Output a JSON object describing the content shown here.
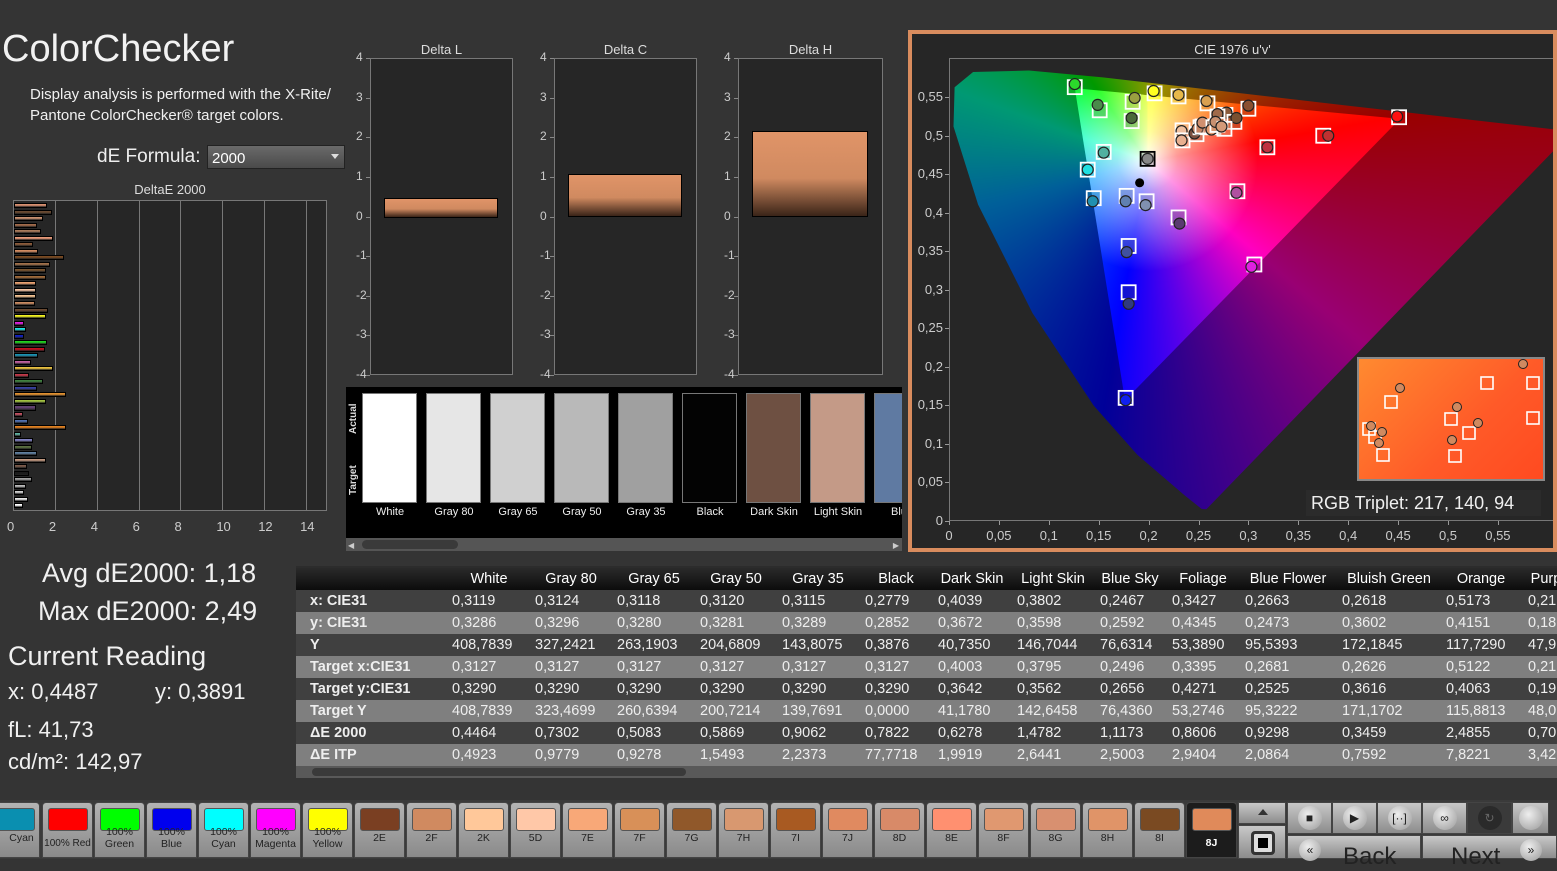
{
  "header": {
    "title": "ColorChecker",
    "description": "Display analysis is performed with the X-Rite/ Pantone ColorChecker® target colors.",
    "formula_label": "dE Formula:",
    "formula_value": "2000"
  },
  "deltae_chart": {
    "title": "DeltaE 2000",
    "type": "bar",
    "orientation": "horizontal",
    "xlim": [
      0,
      15
    ],
    "xticks": [
      "0",
      "2",
      "4",
      "6",
      "8",
      "10",
      "12",
      "14"
    ],
    "values": [
      1.6,
      1.82,
      1.37,
      1.08,
      1.27,
      1.85,
      0.93,
      1.17,
      2.39,
      1.71,
      1.51,
      1.51,
      1.07,
      1.07,
      1.06,
      1.02,
      1.61,
      1.51,
      0.49,
      0.59,
      0.49,
      1.56,
      1.46,
      1.17,
      0.83,
      1.85,
      0.73,
      1.37,
      1.12,
      2.49,
      1.51,
      1.07,
      0.44,
      0.68,
      2.49,
      0.33,
      0.93,
      0.88,
      1.12,
      1.51,
      0.63,
      0.73,
      0.88,
      0.59,
      0.49,
      0.68,
      0.45
    ],
    "colors": [
      "#d89070",
      "#6a4a32",
      "#c89070",
      "#a06a4a",
      "#a87a5a",
      "#e89a7a",
      "#8a5a3a",
      "#d08a60",
      "#7a4a22",
      "#a0704a",
      "#7a5530",
      "#a06a3a",
      "#e8a070",
      "#f0c0a0",
      "#f0c090",
      "#c88a60",
      "#6a4a32",
      "#f0f020",
      "#e020e0",
      "#20e0e0",
      "#1020c0",
      "#20d020",
      "#c01020",
      "#1a90b0",
      "#c060a0",
      "#e8c040",
      "#c03848",
      "#408040",
      "#3840a0",
      "#e09030",
      "#a0c040",
      "#604070",
      "#c05060",
      "#5070b0",
      "#e08020",
      "#60b0a0",
      "#8080c0",
      "#5a7040",
      "#6080a0",
      "#c09880",
      "#7a5a4a",
      "#1a1a1a",
      "#a0a0a0",
      "#b8b8b8",
      "#d0d0d0",
      "#e6e6e6",
      "#ffffff"
    ]
  },
  "delta_charts": [
    {
      "title": "Delta L",
      "value": 0.5,
      "ylim": [
        -4,
        4
      ],
      "yticks": [
        "4",
        "3",
        "2",
        "1",
        "0",
        "-1",
        "-2",
        "-3",
        "-4"
      ]
    },
    {
      "title": "Delta C",
      "value": 1.1,
      "ylim": [
        -4,
        4
      ],
      "yticks": [
        "4",
        "3",
        "2",
        "1",
        "0",
        "-1",
        "-2",
        "-3",
        "-4"
      ]
    },
    {
      "title": "Delta H",
      "value": 2.18,
      "ylim": [
        -4,
        4
      ],
      "yticks": [
        "4",
        "3",
        "2",
        "1",
        "0",
        "-1",
        "-2",
        "-3",
        "-4"
      ]
    }
  ],
  "swatches": {
    "actual_label": "Actual",
    "target_label": "Target",
    "items": [
      {
        "label": "White",
        "color": "#ffffff"
      },
      {
        "label": "Gray 80",
        "color": "#e6e6e6"
      },
      {
        "label": "Gray 65",
        "color": "#d0d0d0"
      },
      {
        "label": "Gray 50",
        "color": "#b9b9b9"
      },
      {
        "label": "Gray 35",
        "color": "#a0a0a0"
      },
      {
        "label": "Black",
        "color": "#030303"
      },
      {
        "label": "Dark Skin",
        "color": "#6e5042"
      },
      {
        "label": "Light Skin",
        "color": "#c49a87"
      },
      {
        "label": "Blue",
        "color": "#5f7aa2"
      }
    ]
  },
  "stats": {
    "avg": "Avg dE2000: 1,18",
    "max": "Max dE2000: 2,49",
    "current_title": "Current Reading",
    "x": "x: 0,4487",
    "y": "y: 0,3891",
    "fl": "fL: 41,73",
    "cdm2": "cd/m²: 142,97"
  },
  "table": {
    "columns": [
      "White",
      "Gray 80",
      "Gray 65",
      "Gray 50",
      "Gray 35",
      "Black",
      "Dark Skin",
      "Light Skin",
      "Blue Sky",
      "Foliage",
      "Blue Flower",
      "Bluish Green",
      "Orange",
      "Purp"
    ],
    "rows": [
      {
        "label": "x: CIE31",
        "values": [
          "0,3119",
          "0,3124",
          "0,3118",
          "0,3120",
          "0,3115",
          "0,2779",
          "0,4039",
          "0,3802",
          "0,2467",
          "0,3427",
          "0,2663",
          "0,2618",
          "0,5173",
          "0,21"
        ]
      },
      {
        "label": "y: CIE31",
        "values": [
          "0,3286",
          "0,3296",
          "0,3280",
          "0,3281",
          "0,3289",
          "0,2852",
          "0,3672",
          "0,3598",
          "0,2592",
          "0,4345",
          "0,2473",
          "0,3602",
          "0,4151",
          "0,18"
        ]
      },
      {
        "label": "Y",
        "values": [
          "408,7839",
          "327,2421",
          "263,1903",
          "204,6809",
          "143,8075",
          "0,3876",
          "40,7350",
          "146,7044",
          "76,6314",
          "53,3890",
          "95,5393",
          "172,1845",
          "117,7290",
          "47,9"
        ]
      },
      {
        "label": "Target x:CIE31",
        "values": [
          "0,3127",
          "0,3127",
          "0,3127",
          "0,3127",
          "0,3127",
          "0,3127",
          "0,4003",
          "0,3795",
          "0,2496",
          "0,3395",
          "0,2681",
          "0,2626",
          "0,5122",
          "0,21"
        ]
      },
      {
        "label": "Target y:CIE31",
        "values": [
          "0,3290",
          "0,3290",
          "0,3290",
          "0,3290",
          "0,3290",
          "0,3290",
          "0,3642",
          "0,3562",
          "0,2656",
          "0,4271",
          "0,2525",
          "0,3616",
          "0,4063",
          "0,19"
        ]
      },
      {
        "label": "Target Y",
        "values": [
          "408,7839",
          "323,4699",
          "260,6394",
          "200,7214",
          "139,7691",
          "0,0000",
          "41,1780",
          "142,6458",
          "76,4360",
          "53,2746",
          "95,3222",
          "171,1702",
          "115,8813",
          "48,0"
        ]
      },
      {
        "label": "ΔE 2000",
        "values": [
          "0,4464",
          "0,7302",
          "0,5083",
          "0,5869",
          "0,9062",
          "0,7822",
          "0,6278",
          "1,4782",
          "1,1173",
          "0,8606",
          "0,9298",
          "0,3459",
          "2,4855",
          "0,70"
        ]
      },
      {
        "label": "ΔE ITP",
        "values": [
          "0,4923",
          "0,9779",
          "0,9278",
          "1,5493",
          "2,2373",
          "77,7718",
          "1,9919",
          "2,6441",
          "2,5003",
          "2,9404",
          "2,0864",
          "0,7592",
          "7,8221",
          "3,42"
        ]
      }
    ]
  },
  "chart_data": {
    "type": "scatter",
    "title": "CIE 1976 u'v'",
    "xlim": [
      0,
      0.6
    ],
    "ylim": [
      0,
      0.59
    ],
    "xticks": [
      "0",
      "0,05",
      "0,1",
      "0,15",
      "0,2",
      "0,25",
      "0,3",
      "0,35",
      "0,4",
      "0,45",
      "0,5",
      "0,55"
    ],
    "yticks": [
      "0",
      "0,05",
      "0,1",
      "0,15",
      "0,2",
      "0,25",
      "0,3",
      "0,35",
      "0,4",
      "0,45",
      "0,5",
      "0,55"
    ],
    "current_reading": [
      0.19,
      0.44
    ],
    "points": [
      {
        "measured": [
          0.125,
          0.568
        ],
        "target": [
          0.125,
          0.564
        ],
        "color": "#2bd92b"
      },
      {
        "measured": [
          0.204,
          0.559
        ],
        "target": [
          0.205,
          0.556
        ],
        "color": "#ffff20"
      },
      {
        "measured": [
          0.229,
          0.554
        ],
        "target": [
          0.229,
          0.552
        ],
        "color": "#e6b84a"
      },
      {
        "measured": [
          0.257,
          0.546
        ],
        "target": [
          0.258,
          0.543
        ],
        "color": "#d9a050"
      },
      {
        "measured": [
          0.185,
          0.55
        ],
        "target": [
          0.183,
          0.545
        ],
        "color": "#9aa040"
      },
      {
        "measured": [
          0.148,
          0.541
        ],
        "target": [
          0.15,
          0.534
        ],
        "color": "#4a8a4a"
      },
      {
        "measured": [
          0.182,
          0.524
        ],
        "target": [
          0.182,
          0.52
        ],
        "color": "#4a6a3a"
      },
      {
        "measured": [
          0.154,
          0.479
        ],
        "target": [
          0.154,
          0.48
        ],
        "color": "#50b0a0"
      },
      {
        "measured": [
          0.138,
          0.457
        ],
        "target": [
          0.138,
          0.457
        ],
        "color": "#20e0e0"
      },
      {
        "measured": [
          0.143,
          0.416
        ],
        "target": [
          0.144,
          0.42
        ],
        "color": "#2090b0"
      },
      {
        "measured": [
          0.176,
          0.416
        ],
        "target": [
          0.177,
          0.423
        ],
        "color": "#6080b0"
      },
      {
        "measured": [
          0.196,
          0.411
        ],
        "target": [
          0.197,
          0.416
        ],
        "color": "#8090b0"
      },
      {
        "measured": [
          0.198,
          0.471
        ],
        "target": [
          0.198,
          0.471
        ],
        "color": "#888888"
      },
      {
        "measured": [
          0.23,
          0.387
        ],
        "target": [
          0.229,
          0.395
        ],
        "color": "#5a3a70"
      },
      {
        "measured": [
          0.287,
          0.427
        ],
        "target": [
          0.288,
          0.429
        ],
        "color": "#b050a0"
      },
      {
        "measured": [
          0.302,
          0.331
        ],
        "target": [
          0.305,
          0.334
        ],
        "color": "#e020e0"
      },
      {
        "measured": [
          0.177,
          0.35
        ],
        "target": [
          0.179,
          0.358
        ],
        "color": "#4050a0"
      },
      {
        "measured": [
          0.179,
          0.283
        ],
        "target": [
          0.179,
          0.298
        ],
        "color": "#303a80"
      },
      {
        "measured": [
          0.176,
          0.158
        ],
        "target": [
          0.176,
          0.161
        ],
        "color": "#1020f0"
      },
      {
        "measured": [
          0.318,
          0.486
        ],
        "target": [
          0.318,
          0.486
        ],
        "color": "#c03040"
      },
      {
        "measured": [
          0.379,
          0.501
        ],
        "target": [
          0.374,
          0.501
        ],
        "color": "#c03030"
      },
      {
        "measured": [
          0.448,
          0.526
        ],
        "target": [
          0.45,
          0.525
        ],
        "color": "#ff1010"
      },
      {
        "measured": [
          0.299,
          0.54
        ],
        "target": [
          0.299,
          0.536
        ],
        "color": "#8a5030"
      },
      {
        "measured": [
          0.277,
          0.531
        ],
        "target": [
          0.276,
          0.528
        ],
        "color": "#8a5a3a"
      },
      {
        "measured": [
          0.287,
          0.524
        ],
        "target": [
          0.285,
          0.519
        ],
        "color": "#7a5030"
      },
      {
        "measured": [
          0.268,
          0.529
        ],
        "target": [
          0.268,
          0.526
        ],
        "color": "#a06a4a"
      },
      {
        "measured": [
          0.232,
          0.507
        ],
        "target": [
          0.233,
          0.508
        ],
        "color": "#f0c0a0"
      },
      {
        "measured": [
          0.232,
          0.495
        ],
        "target": [
          0.233,
          0.495
        ],
        "color": "#e8b090"
      },
      {
        "measured": [
          0.245,
          0.504
        ],
        "target": [
          0.247,
          0.503
        ],
        "color": "#7a5040"
      },
      {
        "measured": [
          0.248,
          0.51
        ],
        "target": [
          0.251,
          0.512
        ],
        "color": "#c08060"
      },
      {
        "measured": [
          0.253,
          0.518
        ],
        "target": [
          0.253,
          0.513
        ],
        "color": "#d09070"
      },
      {
        "measured": [
          0.262,
          0.509
        ],
        "target": [
          0.264,
          0.512
        ],
        "color": "#e09a70"
      },
      {
        "measured": [
          0.266,
          0.519
        ],
        "target": [
          0.268,
          0.515
        ],
        "color": "#c89070"
      },
      {
        "measured": [
          0.272,
          0.513
        ],
        "target": [
          0.275,
          0.51
        ],
        "color": "#d49a78"
      }
    ],
    "rgb_triplet": "RGB Triplet: 217, 140, 94"
  },
  "patches": [
    {
      "label": "Cyan",
      "color": "#0a8fb0"
    },
    {
      "label": "100% Red",
      "color": "#ff0000"
    },
    {
      "label": "100% Green",
      "color": "#00ff00"
    },
    {
      "label": "100% Blue",
      "color": "#0000ee"
    },
    {
      "label": "100% Cyan",
      "color": "#00ffff"
    },
    {
      "label": "100% Magenta",
      "color": "#ff00ff"
    },
    {
      "label": "100% Yellow",
      "color": "#ffff00"
    },
    {
      "label": "2E",
      "color": "#7a3f22"
    },
    {
      "label": "2F",
      "color": "#d08a60"
    },
    {
      "label": "2K",
      "color": "#ffc89a"
    },
    {
      "label": "5D",
      "color": "#ffc8a8"
    },
    {
      "label": "7E",
      "color": "#f8a878"
    },
    {
      "label": "7F",
      "color": "#d89058"
    },
    {
      "label": "7G",
      "color": "#90582a"
    },
    {
      "label": "7H",
      "color": "#d89870"
    },
    {
      "label": "7I",
      "color": "#a85a22"
    },
    {
      "label": "7J",
      "color": "#e08a60"
    },
    {
      "label": "8D",
      "color": "#d88a68"
    },
    {
      "label": "8E",
      "color": "#ff9070"
    },
    {
      "label": "8F",
      "color": "#e09870"
    },
    {
      "label": "8G",
      "color": "#d89070"
    },
    {
      "label": "8H",
      "color": "#e09468"
    },
    {
      "label": "8I",
      "color": "#7a4a22"
    },
    {
      "label": "8J",
      "color": "#e08a5a",
      "selected": true
    }
  ],
  "controls": {
    "back": "Back",
    "next": "Next",
    "back_icon": "«",
    "next_icon": "»",
    "buttons": [
      "stop-icon",
      "play-icon",
      "fit-icon",
      "loop-icon",
      "refresh-icon",
      "record-icon"
    ]
  },
  "accent": "#d98c5e"
}
